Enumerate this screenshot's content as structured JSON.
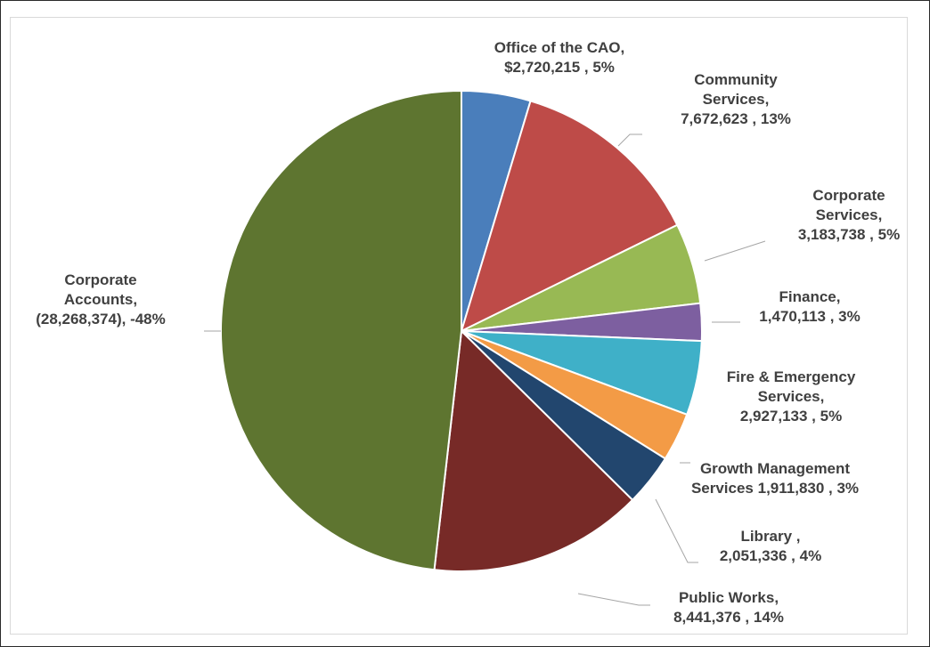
{
  "chart_data": {
    "type": "pie",
    "title": "",
    "slices": [
      {
        "name": "Office of the CAO",
        "value": 2720215,
        "pct": 5,
        "color": "#4a7ebb",
        "label_lines": [
          "Office of the CAO,",
          "$2,720,215 , 5%"
        ]
      },
      {
        "name": "Community Services",
        "value": 7672623,
        "pct": 13,
        "color": "#be4b48",
        "label_lines": [
          "Community",
          "Services,",
          "7,672,623 , 13%"
        ]
      },
      {
        "name": "Corporate Services",
        "value": 3183738,
        "pct": 5,
        "color": "#98b954",
        "label_lines": [
          "Corporate",
          "Services,",
          "3,183,738 , 5%"
        ]
      },
      {
        "name": "Finance",
        "value": 1470113,
        "pct": 3,
        "color": "#7d5fa0",
        "label_lines": [
          "Finance,",
          "1,470,113 , 3%"
        ]
      },
      {
        "name": "Fire & Emergency Services",
        "value": 2927133,
        "pct": 5,
        "color": "#3fb0c8",
        "label_lines": [
          "Fire & Emergency",
          "Services,",
          "2,927,133 , 5%"
        ]
      },
      {
        "name": "Growth Management Services",
        "value": 1911830,
        "pct": 3,
        "color": "#f39b46",
        "label_lines": [
          "Growth Management",
          "Services 1,911,830 , 3%"
        ]
      },
      {
        "name": "Library",
        "value": 2051336,
        "pct": 4,
        "color": "#22466e",
        "label_lines": [
          "Library ,",
          "2,051,336 , 4%"
        ]
      },
      {
        "name": "Public Works",
        "value": 8441376,
        "pct": 14,
        "color": "#772a27",
        "label_lines": [
          "Public Works,",
          "8,441,376 , 14%"
        ]
      },
      {
        "name": "Corporate Accounts",
        "value": -28268374,
        "pct": -48,
        "color": "#5e7530",
        "label_lines": [
          "Corporate",
          "Accounts,",
          "(28,268,374), -48%"
        ]
      }
    ],
    "legend": "none"
  }
}
